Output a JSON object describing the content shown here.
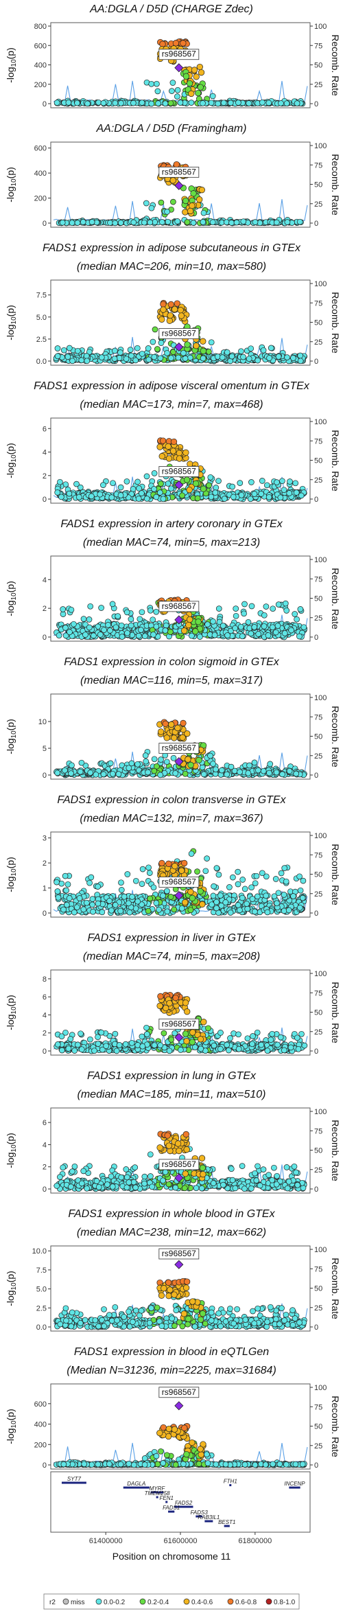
{
  "colors": {
    "recomb_line": "#5aa0e6",
    "frame": "#555555",
    "lead": "#8a2be2",
    "r2_miss": "#bfbfbf",
    "r2_0_0_2": "#5fe5e5",
    "r2_0_2_0_4": "#66dd44",
    "r2_0_4_0_6": "#f2b51f",
    "r2_0_6_0_8": "#f07a2a",
    "r2_0_8_1_0": "#b22222"
  },
  "chart_data": [
    {
      "type": "scatter",
      "title": "AA:DGLA / D5D (CHARGE Zdec)",
      "subtitle": "",
      "ylabel": "-log10(p)",
      "y2label": "Recomb. Rate",
      "ylim": [
        0,
        800
      ],
      "yticks": [
        0,
        200,
        400,
        600,
        800
      ],
      "y2ticks": [
        0,
        25,
        50,
        75,
        100
      ],
      "annotation": "rs968567",
      "peak": 640,
      "lead_value": 370,
      "baseline": 12,
      "n_points": 240
    },
    {
      "type": "scatter",
      "title": "AA:DGLA / D5D (Framingham)",
      "subtitle": "",
      "ylabel": "-log10(p)",
      "y2label": "Recomb. Rate",
      "ylim": [
        0,
        620
      ],
      "yticks": [
        0,
        200,
        400,
        600
      ],
      "y2ticks": [
        0,
        25,
        50,
        75,
        100
      ],
      "annotation": "rs968567",
      "peak": 470,
      "lead_value": 300,
      "baseline": 10,
      "n_points": 240
    },
    {
      "type": "scatter",
      "title": "FADS1 expression in adipose subcutaneous in GTEx",
      "subtitle": "(median MAC=206, min=10, max=580)",
      "ylabel": "-log10(p)",
      "y2label": "Recomb. Rate",
      "ylim": [
        0,
        8.8
      ],
      "yticks": [
        0,
        2.5,
        5.0,
        7.5
      ],
      "ytick_labels": [
        "0.0",
        "2.5",
        "5.0",
        "7.5"
      ],
      "y2ticks": [
        0,
        25,
        50,
        75,
        100
      ],
      "annotation": "rs968567",
      "peak": 6.6,
      "lead_value": 1.6,
      "baseline": 0.6,
      "n_points": 420
    },
    {
      "type": "scatter",
      "title": "FADS1 expression in adipose visceral omentum in GTEx",
      "subtitle": "(median MAC=173, min=7, max=468)",
      "ylabel": "-log10(p)",
      "y2label": "Recomb. Rate",
      "ylim": [
        0,
        6.6
      ],
      "yticks": [
        0,
        2,
        4,
        6
      ],
      "y2ticks": [
        0,
        25,
        50,
        75,
        100
      ],
      "annotation": "rs968567",
      "peak": 5.0,
      "lead_value": 1.2,
      "baseline": 0.6,
      "n_points": 420
    },
    {
      "type": "scatter",
      "title": "FADS1 expression in artery coronary in GTEx",
      "subtitle": "(median MAC=74, min=5, max=213)",
      "ylabel": "-log10(p)",
      "y2label": "Recomb. Rate",
      "ylim": [
        0,
        5.4
      ],
      "yticks": [
        0,
        2,
        4
      ],
      "y2ticks": [
        0,
        25,
        50,
        75,
        100
      ],
      "annotation": "rs968567",
      "peak": 2.6,
      "lead_value": 1.2,
      "baseline": 0.9,
      "n_points": 520
    },
    {
      "type": "scatter",
      "title": "FADS1 expression in colon sigmoid in GTEx",
      "subtitle": "(median MAC=116, min=5, max=317)",
      "ylabel": "-log10(p)",
      "y2label": "Recomb. Rate",
      "ylim": [
        0,
        14.5
      ],
      "yticks": [
        0,
        5,
        10
      ],
      "y2ticks": [
        0,
        25,
        50,
        75,
        100
      ],
      "annotation": "rs968567",
      "peak": 10.0,
      "lead_value": 2.5,
      "baseline": 0.9,
      "n_points": 440
    },
    {
      "type": "scatter",
      "title": "FADS1 expression in colon transverse in GTEx",
      "subtitle": "(median MAC=132, min=7, max=367)",
      "ylabel": "-log10(p)",
      "y2label": "Recomb. Rate",
      "ylim": [
        0,
        3.1
      ],
      "yticks": [
        0,
        1,
        2,
        3
      ],
      "y2ticks": [
        0,
        25,
        50,
        75,
        100
      ],
      "annotation": "rs968567",
      "peak": 2.0,
      "lead_value": 0.7,
      "baseline": 0.7,
      "n_points": 560
    },
    {
      "type": "scatter",
      "title": "FADS1 expression in liver in GTEx",
      "subtitle": "(median MAC=74, min=5, max=208)",
      "ylabel": "-log10(p)",
      "y2label": "Recomb. Rate",
      "ylim": [
        0,
        8.6
      ],
      "yticks": [
        0,
        2,
        4,
        6,
        8
      ],
      "y2ticks": [
        0,
        25,
        50,
        75,
        100
      ],
      "annotation": "rs968567",
      "peak": 6.2,
      "lead_value": 1.5,
      "baseline": 0.8,
      "n_points": 440
    },
    {
      "type": "scatter",
      "title": "FADS1 expression in lung in GTEx",
      "subtitle": "(median MAC=185, min=11, max=510)",
      "ylabel": "-log10(p)",
      "y2label": "Recomb. Rate",
      "ylim": [
        0,
        7.0
      ],
      "yticks": [
        0,
        2,
        4,
        6
      ],
      "y2ticks": [
        0,
        25,
        50,
        75,
        100
      ],
      "annotation": "rs968567",
      "peak": 5.0,
      "lead_value": 1.0,
      "baseline": 0.8,
      "n_points": 480
    },
    {
      "type": "scatter",
      "title": "FADS1 expression in whole blood in GTEx",
      "subtitle": "(median MAC=238, min=12, max=662)",
      "ylabel": "-log10(p)",
      "y2label": "Recomb. Rate",
      "ylim": [
        0,
        10.2
      ],
      "yticks": [
        0,
        2.5,
        5.0,
        7.5,
        10.0
      ],
      "ytick_labels": [
        "0.0",
        "2.5",
        "5.0",
        "7.5",
        "10.0"
      ],
      "y2ticks": [
        0,
        25,
        50,
        75,
        100
      ],
      "annotation": "rs968567",
      "peak": 6.0,
      "lead_value": 8.2,
      "baseline": 1.0,
      "n_points": 460
    },
    {
      "type": "scatter",
      "title": "FADS1 expression in blood in eQTLGen",
      "subtitle": "(Median N=31236, min=2225, max=31684)",
      "ylabel": "-log10(p)",
      "y2label": "Recomb. Rate",
      "ylim": [
        0,
        760
      ],
      "yticks": [
        0,
        200,
        400,
        600
      ],
      "y2ticks": [
        0,
        25,
        50,
        75,
        100
      ],
      "annotation": "rs968567",
      "peak": 380,
      "lead_value": 580,
      "baseline": 10,
      "n_points": 420
    }
  ],
  "x_axis": {
    "label": "Position on chromosome 11",
    "ticks": [
      61400000,
      61600000,
      61800000
    ],
    "tick_labels": [
      "61400000",
      "61600000",
      "61800000"
    ],
    "range": [
      61260000,
      61940000
    ],
    "lead_position": 61596000
  },
  "genes": [
    {
      "name": "SYT7",
      "start": 61282000,
      "end": 61348000,
      "row": 0
    },
    {
      "name": "DAGLA",
      "start": 61447000,
      "end": 61517000,
      "row": 1
    },
    {
      "name": "MYRF",
      "start": 61520000,
      "end": 61555000,
      "row": 2
    },
    {
      "name": "TMEM258",
      "start": 61535000,
      "end": 61540000,
      "row": 3
    },
    {
      "name": "FEN1",
      "start": 61560000,
      "end": 61564000,
      "row": 4
    },
    {
      "name": "FADS2",
      "start": 61583000,
      "end": 61634000,
      "row": 5
    },
    {
      "name": "FADS1",
      "start": 61567000,
      "end": 61584000,
      "row": 6
    },
    {
      "name": "FADS3",
      "start": 61641000,
      "end": 61659000,
      "row": 7
    },
    {
      "name": "RAB3IL1",
      "start": 61665000,
      "end": 61687000,
      "row": 8
    },
    {
      "name": "BEST1",
      "start": 61717000,
      "end": 61732000,
      "row": 9
    },
    {
      "name": "FTH1",
      "start": 61731000,
      "end": 61735000,
      "row": 0.5
    },
    {
      "name": "INCENP",
      "start": 61891000,
      "end": 61921000,
      "row": 1
    }
  ],
  "legend": {
    "title": "r2",
    "items": [
      {
        "label": "miss",
        "color": "#bfbfbf"
      },
      {
        "label": "0.0-0.2",
        "color": "#5fe5e5"
      },
      {
        "label": "0.2-0.4",
        "color": "#66dd44"
      },
      {
        "label": "0.4-0.6",
        "color": "#f2b51f"
      },
      {
        "label": "0.6-0.8",
        "color": "#f07a2a"
      },
      {
        "label": "0.8-1.0",
        "color": "#b22222"
      }
    ]
  }
}
